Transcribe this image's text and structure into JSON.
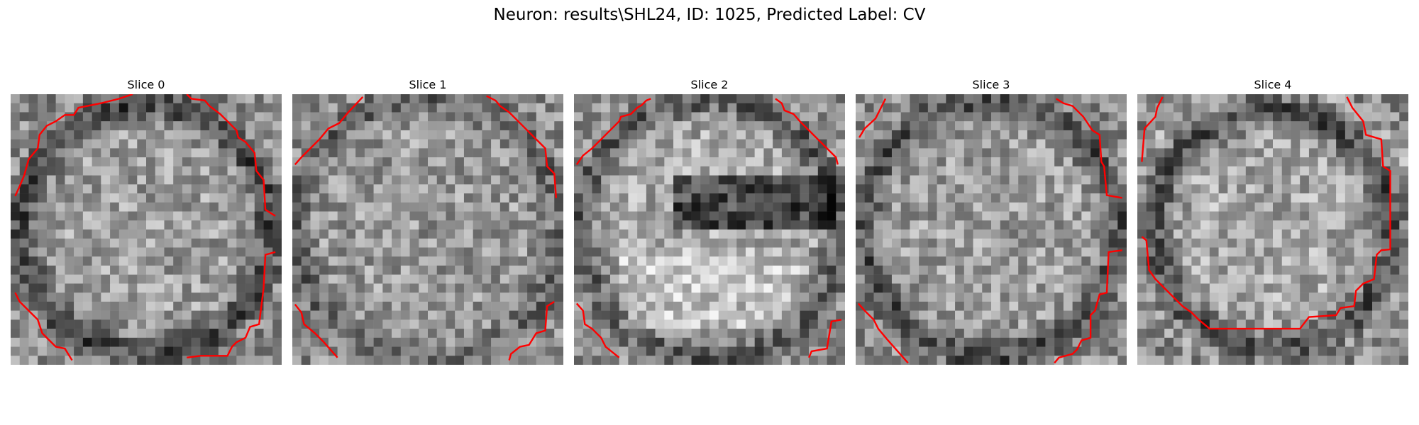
{
  "figure": {
    "title": "Neuron: results\\SHL24, ID: 1025, Predicted Label: CV",
    "contour_color": "#ff0000",
    "colormap": "gray",
    "grid_size": 30
  },
  "panels": [
    {
      "title": "Slice 0"
    },
    {
      "title": "Slice 1"
    },
    {
      "title": "Slice 2"
    },
    {
      "title": "Slice 3"
    },
    {
      "title": "Slice 4"
    }
  ]
}
